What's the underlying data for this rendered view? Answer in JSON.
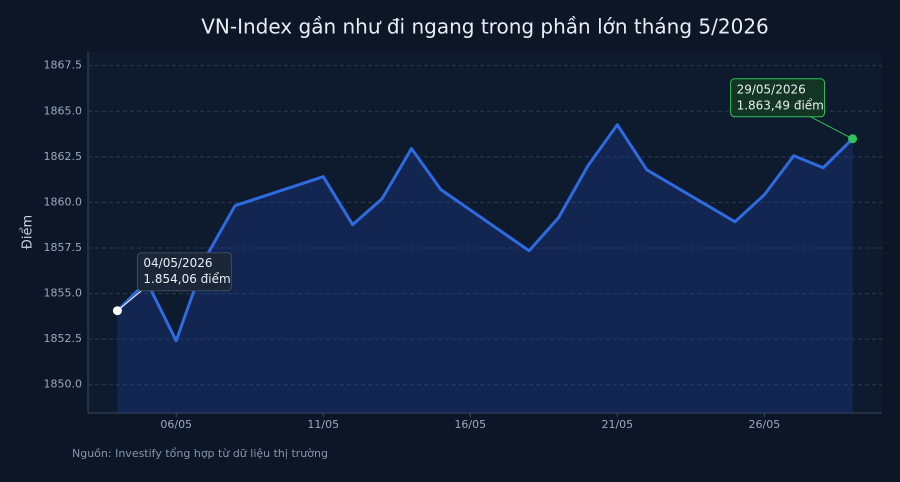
{
  "chart_data": {
    "type": "area",
    "title": "VN-Index gần như đi ngang trong phần lớn tháng 5/2026",
    "y_label": "Điểm",
    "source": "Nguồn: Investify tổng hợp từ dữ liệu thị trường",
    "x": [
      "2026-05-04",
      "2026-05-05",
      "2026-05-06",
      "2026-05-07",
      "2026-05-08",
      "2026-05-11",
      "2026-05-12",
      "2026-05-13",
      "2026-05-14",
      "2026-05-15",
      "2026-05-18",
      "2026-05-19",
      "2026-05-20",
      "2026-05-21",
      "2026-05-22",
      "2026-05-25",
      "2026-05-26",
      "2026-05-27",
      "2026-05-28",
      "2026-05-29"
    ],
    "series": [
      {
        "name": "VN-Index",
        "color": "#2f6be0",
        "values": [
          1854.06,
          1855.65,
          1852.41,
          1856.97,
          1859.82,
          1861.41,
          1858.78,
          1860.2,
          1862.95,
          1860.7,
          1857.35,
          1859.16,
          1862.01,
          1864.26,
          1861.79,
          1858.94,
          1860.42,
          1862.56,
          1861.9,
          1863.49
        ]
      }
    ],
    "xlim": [
      "2026-05-03",
      "2026-05-30"
    ],
    "xticks": [
      {
        "value": "2026-05-06",
        "label": "06/05"
      },
      {
        "value": "2026-05-11",
        "label": "11/05"
      },
      {
        "value": "2026-05-16",
        "label": "16/05"
      },
      {
        "value": "2026-05-21",
        "label": "21/05"
      },
      {
        "value": "2026-05-26",
        "label": "26/05"
      }
    ],
    "ylim": [
      1848.45,
      1868.25
    ],
    "yticks": [
      {
        "value": 1850,
        "label": "1850.0"
      },
      1852.5,
      {
        "value": 1855,
        "label": "1855.0"
      },
      1857.5,
      {
        "value": 1860,
        "label": "1860.0"
      },
      1862.5,
      {
        "value": 1865,
        "label": "1865.0"
      },
      1867.5
    ],
    "grid": true,
    "annotations": [
      {
        "lines": [
          "04/05/2026",
          "1.854,06 điểm"
        ],
        "color": "#ffffff"
      },
      {
        "lines": [
          "29/05/2026",
          "1.863,49 điểm"
        ],
        "color": "#2fc25b"
      }
    ]
  }
}
